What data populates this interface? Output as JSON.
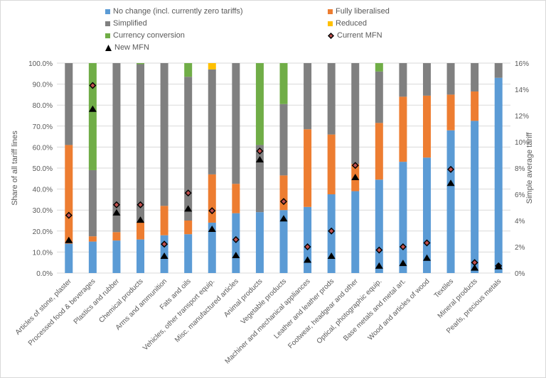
{
  "chart_data": {
    "type": "bar",
    "stacked": true,
    "grid": true,
    "legend_position": "top",
    "ylabel": "Share of all tariff lines",
    "y2label": "Simple average tariff",
    "ylim": [
      0,
      100
    ],
    "y2lim": [
      0,
      16
    ],
    "yticks": [
      "0.0%",
      "10.0%",
      "20.0%",
      "30.0%",
      "40.0%",
      "50.0%",
      "60.0%",
      "70.0%",
      "80.0%",
      "90.0%",
      "100.0%"
    ],
    "y2ticks": [
      "0%",
      "2%",
      "4%",
      "6%",
      "8%",
      "10%",
      "12%",
      "14%",
      "16%"
    ],
    "categories": [
      "Articles of stone, plaster",
      "Processed food & beverages",
      "Plastics and rubber",
      "Chemical products",
      "Arms and ammunition",
      "Fats and oils",
      "Vehicles, other transport equip.",
      "Misc. manufactured articles",
      "Animal products",
      "Vegetable products",
      "Machiner and mechanical appliances",
      "Leather and leather prods",
      "Footwear, headgear and other",
      "Optical, photographic equip.",
      "Base metals and metal art.",
      "Wood and articles of wood",
      "Textiles",
      "Mineral products",
      "Pearls, precious metals"
    ],
    "series": [
      {
        "name": "No change (incl. currently zero tariffs)",
        "color": "#5b9bd5",
        "values": [
          14,
          15,
          15.5,
          16,
          18,
          18.5,
          24,
          28.5,
          29,
          30,
          31.5,
          37.5,
          39,
          44.5,
          53,
          55,
          68,
          72.5,
          93
        ]
      },
      {
        "name": "Fully liberalised",
        "color": "#ed7d31",
        "values": [
          47,
          2.5,
          4,
          8,
          14,
          6.5,
          23,
          14,
          0,
          16.5,
          37,
          28.5,
          13,
          27,
          31,
          29.5,
          17,
          14,
          0
        ]
      },
      {
        "name": "Simplified",
        "color": "#808080",
        "values": [
          39,
          31.5,
          80.5,
          75.5,
          68,
          68.5,
          50,
          57.5,
          32,
          34,
          31.5,
          34,
          48,
          24.5,
          16,
          15.5,
          15,
          13.5,
          7
        ]
      },
      {
        "name": "Reduced",
        "color": "#ffc000",
        "values": [
          0,
          0,
          0,
          0,
          0,
          0,
          3,
          0,
          0,
          0,
          0,
          0,
          0,
          0,
          0,
          0,
          0,
          0,
          0
        ]
      },
      {
        "name": "Currency conversion",
        "color": "#70ad47",
        "values": [
          0,
          51,
          0,
          0.5,
          0,
          6.5,
          0,
          0,
          39,
          19.5,
          0,
          0,
          0,
          4,
          0,
          0,
          0,
          0,
          0
        ]
      }
    ],
    "markers": [
      {
        "name": "Current MFN",
        "axis": "right",
        "shape": "diamond",
        "values": [
          4.4,
          14.3,
          5.2,
          5.2,
          2.2,
          6.1,
          4.75,
          2.55,
          9.3,
          5.45,
          2.0,
          3.2,
          8.2,
          1.75,
          2.0,
          2.3,
          7.9,
          0.8,
          0.55
        ]
      },
      {
        "name": "New MFN",
        "axis": "right",
        "shape": "triangle",
        "values": [
          2.5,
          12.5,
          4.6,
          4.05,
          1.3,
          4.9,
          3.35,
          1.35,
          8.65,
          4.15,
          1.0,
          1.3,
          7.3,
          0.55,
          0.75,
          1.15,
          6.85,
          0.4,
          0.5
        ]
      }
    ]
  },
  "legend": {
    "no_change": "No change (incl. currently zero tariffs)",
    "fully_liberalised": "Fully liberalised",
    "simplified": "Simplified",
    "reduced": "Reduced",
    "currency_conversion": "Currency conversion",
    "current_mfn": "Current MFN",
    "new_mfn": "New MFN"
  }
}
